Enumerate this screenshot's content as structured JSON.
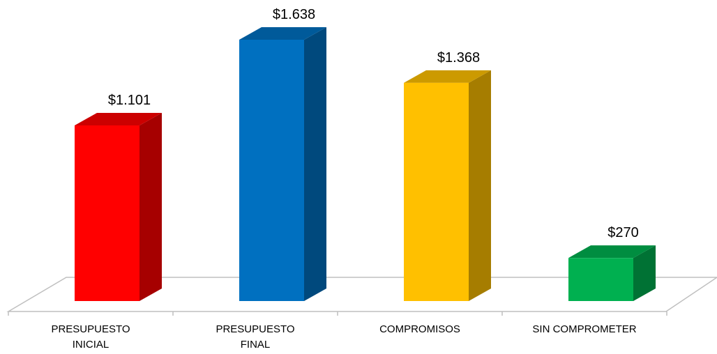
{
  "chart_data": {
    "type": "bar3d",
    "categories": [
      "PRESUPUESTO INICIAL",
      "PRESUPUESTO FINAL",
      "COMPROMISOS",
      "SIN COMPROMETER"
    ],
    "values": [
      1101,
      1638,
      1368,
      270
    ],
    "value_labels": [
      "$1.101",
      "$1.638",
      "$1.368",
      "$270"
    ],
    "colors": [
      "#ff0000",
      "#0070c0",
      "#ffc000",
      "#00b050"
    ]
  }
}
